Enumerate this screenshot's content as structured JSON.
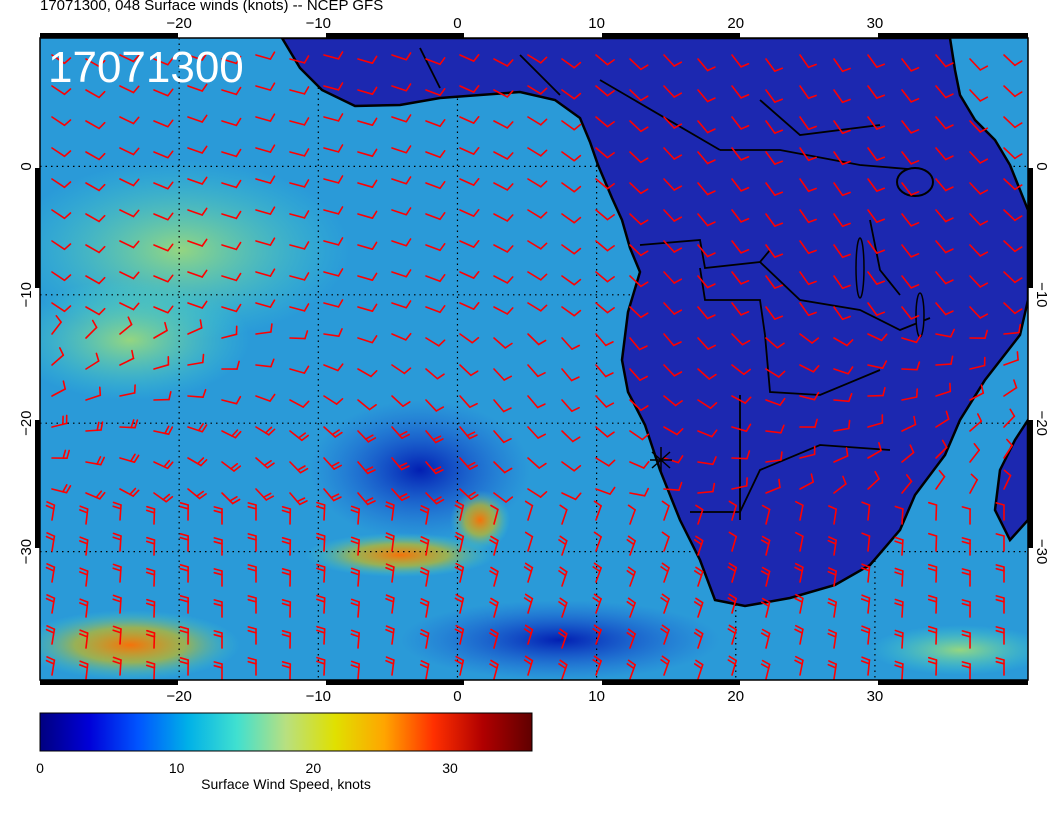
{
  "title": "17071300, 048 Surface winds (knots) -- NCEP GFS",
  "stamp": "17071300",
  "axes": {
    "lon_ticks": [
      -20,
      -10,
      0,
      10,
      20,
      30
    ],
    "lon_labels": [
      "−20",
      "−10",
      "0",
      "10",
      "20",
      "30"
    ],
    "lat_ticks": [
      0,
      -10,
      -20,
      -30
    ],
    "lat_labels": [
      "0",
      "−10",
      "−20",
      "−30"
    ],
    "lon_range": [
      -30,
      41
    ],
    "lat_range": [
      -40,
      10
    ]
  },
  "colorbar": {
    "title": "Surface Wind Speed, knots",
    "ticks": [
      0,
      10,
      20,
      30
    ],
    "tick_labels": [
      "0",
      "10",
      "20",
      "30"
    ],
    "range": [
      0,
      36
    ],
    "colors": [
      "#000080",
      "#0000d8",
      "#0055ff",
      "#00b0e8",
      "#40e0d0",
      "#b8e080",
      "#e0e000",
      "#ffa500",
      "#ff3000",
      "#b00000",
      "#600000"
    ]
  },
  "colors": {
    "ocean_calm": "#1e32c8",
    "ocean_moderate": "#28a8dc",
    "land": "#1c28b0",
    "wind_barbs": "#ff0000",
    "coastline": "#000000"
  },
  "map_features": [
    "coastline",
    "country-borders",
    "lat-lon-grid",
    "wind-barbs",
    "storm-marker"
  ]
}
